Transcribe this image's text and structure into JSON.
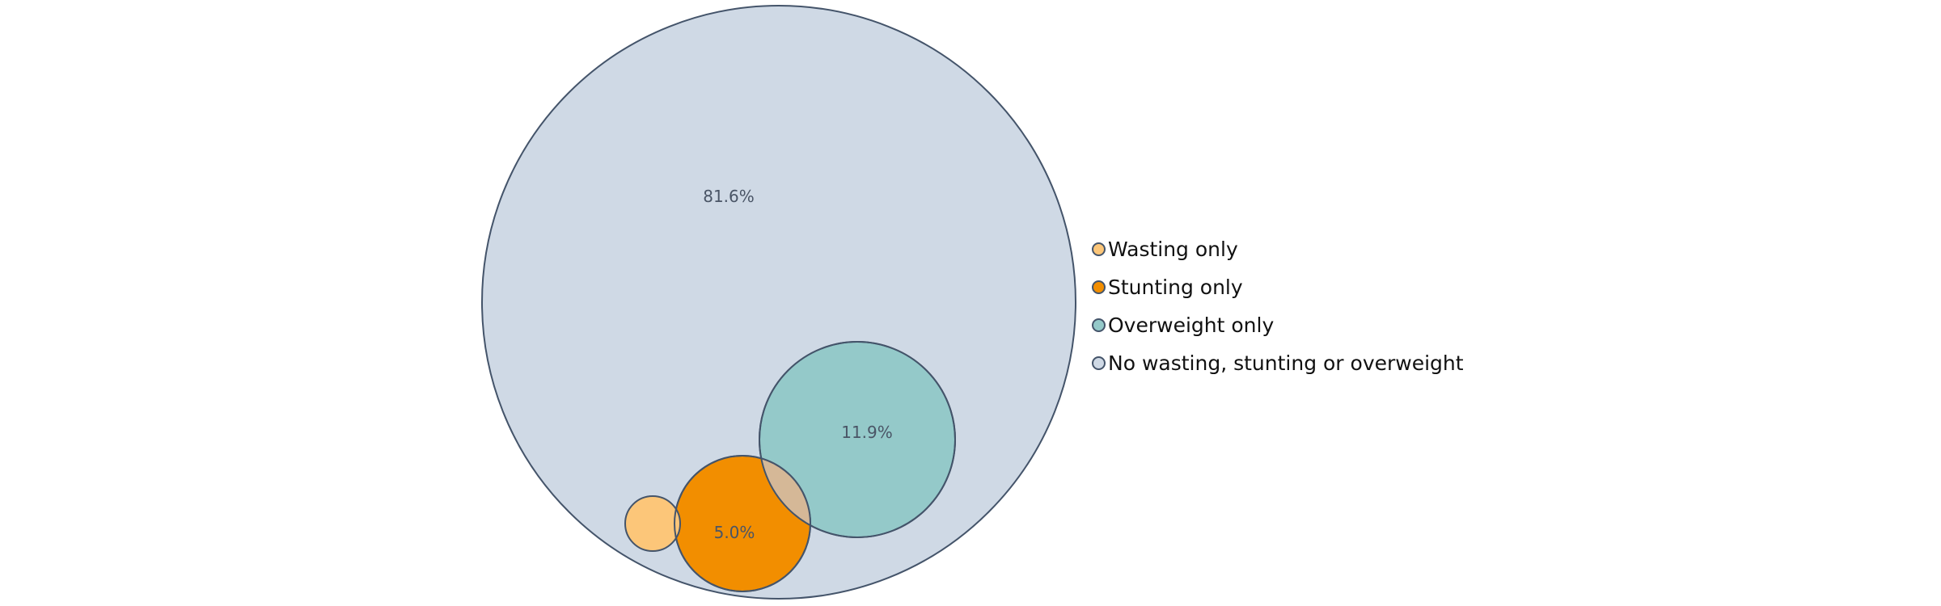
{
  "chart_data": {
    "type": "bubble-venn",
    "title": "",
    "series": [
      {
        "name": "Wasting only",
        "color": "#fcc679"
      },
      {
        "name": "Stunting only",
        "color": "#f28e00"
      },
      {
        "name": "Overweight only",
        "color": "#94c9c9"
      },
      {
        "name": "No wasting, stunting or overweight",
        "color": "#cfd9e5"
      }
    ],
    "overlap_color": "#d5b897",
    "stroke_color": "#44546a",
    "labels": [
      {
        "series": "No wasting, stunting or overweight",
        "text": "81.6%"
      },
      {
        "series": "Overweight only",
        "text": "11.9%"
      },
      {
        "series": "Stunting only",
        "text": "5.0%"
      }
    ],
    "legend_position": "right"
  }
}
